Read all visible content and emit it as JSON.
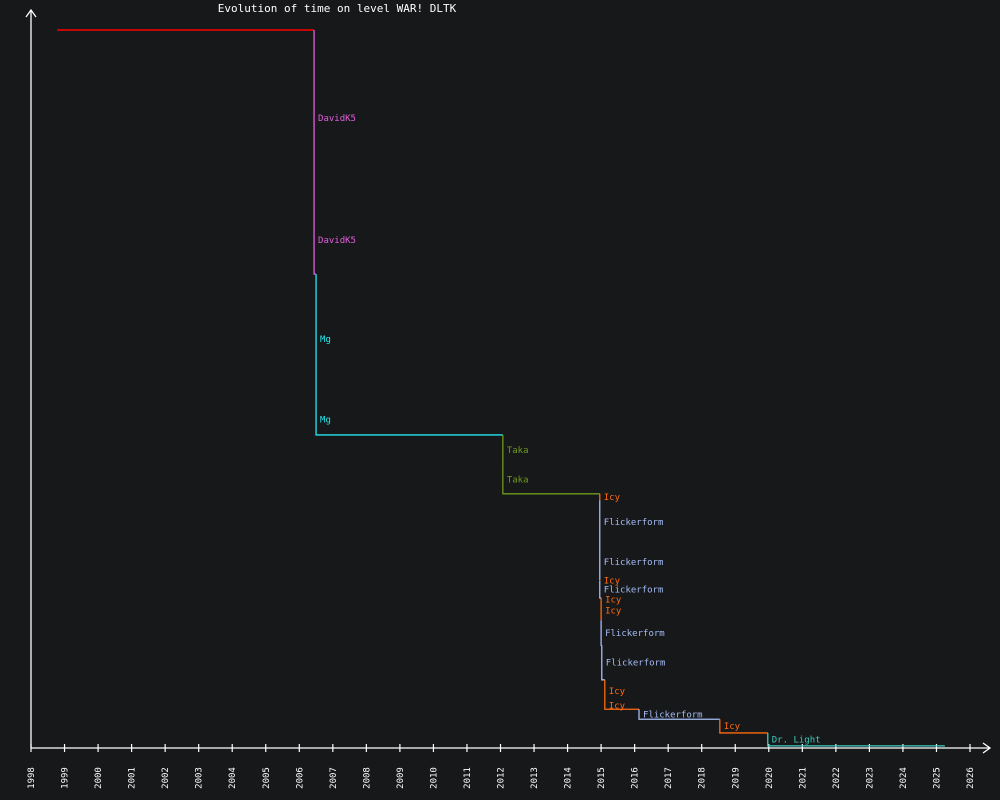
{
  "chart_data": {
    "type": "line",
    "title": "Evolution of time on level WAR! DLTK",
    "xlabel": "",
    "ylabel": "",
    "xlim": [
      1998,
      2026
    ],
    "ylim": [
      0,
      100
    ],
    "grid": false,
    "x_ticks": [
      "1998",
      "1999",
      "2000",
      "2001",
      "2002",
      "2003",
      "2004",
      "2005",
      "2006",
      "2007",
      "2008",
      "2009",
      "2010",
      "2011",
      "2012",
      "2013",
      "2014",
      "2015",
      "2016",
      "2017",
      "2018",
      "2019",
      "2020",
      "2021",
      "2022",
      "2023",
      "2024",
      "2025",
      "2026"
    ],
    "start": {
      "year": 1998.78,
      "value": 100,
      "color": "#ff0000"
    },
    "end_year": 2025.25,
    "player_colors": {
      "DavidK5": "#e55ce0",
      "Mg": "#22e8ee",
      "Taka": "#6f9a1a",
      "Icy": "#ff6a10",
      "Flickerform": "#a6bcf5",
      "Dr. Light": "#3ccfc0"
    },
    "records": [
      {
        "player": "DavidK5",
        "year": 2006.44,
        "value": 75.5
      },
      {
        "player": "DavidK5",
        "year": 2006.44,
        "value": 66.0
      },
      {
        "player": "Mg",
        "year": 2006.5,
        "value": 47.9
      },
      {
        "player": "Mg",
        "year": 2006.5,
        "value": 43.6
      },
      {
        "player": "Taka",
        "year": 2012.07,
        "value": 39.4
      },
      {
        "player": "Taka",
        "year": 2012.07,
        "value": 35.4
      },
      {
        "player": "Icy",
        "year": 2014.96,
        "value": 34.5
      },
      {
        "player": "Flickerform",
        "year": 2014.96,
        "value": 28.4
      },
      {
        "player": "Flickerform",
        "year": 2014.96,
        "value": 23.4
      },
      {
        "player": "Icy",
        "year": 2014.96,
        "value": 23.3
      },
      {
        "player": "Flickerform",
        "year": 2014.96,
        "value": 20.9
      },
      {
        "player": "Icy",
        "year": 2015.0,
        "value": 20.5
      },
      {
        "player": "Icy",
        "year": 2015.0,
        "value": 17.8
      },
      {
        "player": "Flickerform",
        "year": 2015.0,
        "value": 14.3
      },
      {
        "player": "Flickerform",
        "year": 2015.02,
        "value": 9.5
      },
      {
        "player": "Icy",
        "year": 2015.11,
        "value": 6.4
      },
      {
        "player": "Icy",
        "year": 2015.11,
        "value": 5.4
      },
      {
        "player": "Flickerform",
        "year": 2016.13,
        "value": 4.0
      },
      {
        "player": "Icy",
        "year": 2018.54,
        "value": 2.1
      },
      {
        "player": "Dr. Light",
        "year": 2019.97,
        "value": 0.3
      }
    ]
  }
}
